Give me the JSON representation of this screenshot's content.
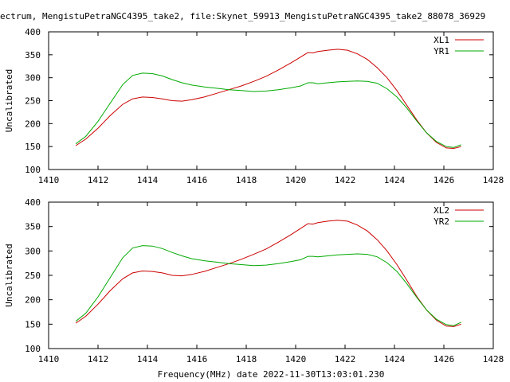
{
  "title": "ectrum, MengistuPetraNGC4395_take2, file:Skynet_59913_MengistuPetraNGC4395_take2_88078_36929",
  "chart_data": [
    {
      "type": "line",
      "ylabel": "Uncalibrated",
      "xlabel": "",
      "xlim": [
        1410,
        1428
      ],
      "ylim": [
        100,
        400
      ],
      "xticks": [
        "1410",
        "1412",
        "1414",
        "1416",
        "1418",
        "1420",
        "1422",
        "1424",
        "1426",
        "1428"
      ],
      "yticks": [
        "100",
        "150",
        "200",
        "250",
        "300",
        "350",
        "400"
      ],
      "grid": false,
      "legend_position": "top-right",
      "series": [
        {
          "name": "XL1",
          "color": "#cc0000",
          "points": [
            [
              1411.1,
              152
            ],
            [
              1411.5,
              166
            ],
            [
              1412.0,
              190
            ],
            [
              1412.5,
              218
            ],
            [
              1413.0,
              242
            ],
            [
              1413.4,
              254
            ],
            [
              1413.8,
              258
            ],
            [
              1414.2,
              257
            ],
            [
              1414.6,
              254
            ],
            [
              1415.0,
              250
            ],
            [
              1415.4,
              249
            ],
            [
              1415.8,
              252
            ],
            [
              1416.3,
              258
            ],
            [
              1416.8,
              266
            ],
            [
              1417.3,
              274
            ],
            [
              1417.8,
              282
            ],
            [
              1418.3,
              292
            ],
            [
              1418.8,
              303
            ],
            [
              1419.3,
              317
            ],
            [
              1419.8,
              332
            ],
            [
              1420.2,
              345
            ],
            [
              1420.5,
              355
            ],
            [
              1420.7,
              354
            ],
            [
              1420.9,
              357
            ],
            [
              1421.3,
              360
            ],
            [
              1421.7,
              362
            ],
            [
              1422.1,
              360
            ],
            [
              1422.5,
              352
            ],
            [
              1422.9,
              340
            ],
            [
              1423.3,
              322
            ],
            [
              1423.7,
              300
            ],
            [
              1424.1,
              272
            ],
            [
              1424.5,
              240
            ],
            [
              1424.9,
              208
            ],
            [
              1425.3,
              180
            ],
            [
              1425.7,
              159
            ],
            [
              1426.1,
              147
            ],
            [
              1426.4,
              146
            ],
            [
              1426.7,
              150
            ]
          ]
        },
        {
          "name": "YR1",
          "color": "#00aa00",
          "points": [
            [
              1411.1,
              156
            ],
            [
              1411.5,
              172
            ],
            [
              1412.0,
              205
            ],
            [
              1412.5,
              245
            ],
            [
              1413.0,
              285
            ],
            [
              1413.4,
              305
            ],
            [
              1413.8,
              310
            ],
            [
              1414.2,
              309
            ],
            [
              1414.6,
              304
            ],
            [
              1415.0,
              296
            ],
            [
              1415.4,
              289
            ],
            [
              1415.8,
              284
            ],
            [
              1416.3,
              280
            ],
            [
              1416.8,
              277
            ],
            [
              1417.3,
              274
            ],
            [
              1417.8,
              272
            ],
            [
              1418.3,
              270
            ],
            [
              1418.8,
              271
            ],
            [
              1419.3,
              274
            ],
            [
              1419.8,
              278
            ],
            [
              1420.2,
              282
            ],
            [
              1420.5,
              289
            ],
            [
              1420.7,
              289
            ],
            [
              1420.9,
              287
            ],
            [
              1421.3,
              289
            ],
            [
              1421.7,
              291
            ],
            [
              1422.1,
              292
            ],
            [
              1422.5,
              293
            ],
            [
              1422.9,
              292
            ],
            [
              1423.3,
              288
            ],
            [
              1423.7,
              276
            ],
            [
              1424.1,
              258
            ],
            [
              1424.5,
              234
            ],
            [
              1424.9,
              206
            ],
            [
              1425.3,
              180
            ],
            [
              1425.7,
              161
            ],
            [
              1426.1,
              150
            ],
            [
              1426.4,
              148
            ],
            [
              1426.7,
              154
            ]
          ]
        }
      ]
    },
    {
      "type": "line",
      "ylabel": "Uncalibrated",
      "xlabel": "Frequency(MHz) date 2022-11-30T13:03:01.230",
      "xlim": [
        1410,
        1428
      ],
      "ylim": [
        100,
        400
      ],
      "xticks": [
        "1410",
        "1412",
        "1414",
        "1416",
        "1418",
        "1420",
        "1422",
        "1424",
        "1426",
        "1428"
      ],
      "yticks": [
        "100",
        "150",
        "200",
        "250",
        "300",
        "350",
        "400"
      ],
      "grid": false,
      "legend_position": "top-right",
      "series": [
        {
          "name": "XL2",
          "color": "#cc0000",
          "points": [
            [
              1411.1,
              152
            ],
            [
              1411.5,
              166
            ],
            [
              1412.0,
              191
            ],
            [
              1412.5,
              219
            ],
            [
              1413.0,
              243
            ],
            [
              1413.4,
              255
            ],
            [
              1413.8,
              259
            ],
            [
              1414.2,
              258
            ],
            [
              1414.6,
              255
            ],
            [
              1415.0,
              250
            ],
            [
              1415.4,
              249
            ],
            [
              1415.8,
              252
            ],
            [
              1416.3,
              258
            ],
            [
              1416.8,
              266
            ],
            [
              1417.3,
              274
            ],
            [
              1417.8,
              283
            ],
            [
              1418.3,
              293
            ],
            [
              1418.8,
              304
            ],
            [
              1419.3,
              318
            ],
            [
              1419.8,
              333
            ],
            [
              1420.2,
              346
            ],
            [
              1420.5,
              356
            ],
            [
              1420.7,
              355
            ],
            [
              1420.9,
              358
            ],
            [
              1421.3,
              361
            ],
            [
              1421.7,
              363
            ],
            [
              1422.1,
              361
            ],
            [
              1422.5,
              353
            ],
            [
              1422.9,
              341
            ],
            [
              1423.3,
              323
            ],
            [
              1423.7,
              300
            ],
            [
              1424.1,
              272
            ],
            [
              1424.5,
              240
            ],
            [
              1424.9,
              207
            ],
            [
              1425.3,
              179
            ],
            [
              1425.7,
              158
            ],
            [
              1426.1,
              146
            ],
            [
              1426.4,
              145
            ],
            [
              1426.7,
              150
            ]
          ]
        },
        {
          "name": "YR2",
          "color": "#00aa00",
          "points": [
            [
              1411.1,
              156
            ],
            [
              1411.5,
              172
            ],
            [
              1412.0,
              206
            ],
            [
              1412.5,
              246
            ],
            [
              1413.0,
              286
            ],
            [
              1413.4,
              306
            ],
            [
              1413.8,
              311
            ],
            [
              1414.2,
              310
            ],
            [
              1414.6,
              305
            ],
            [
              1415.0,
              297
            ],
            [
              1415.4,
              290
            ],
            [
              1415.8,
              284
            ],
            [
              1416.3,
              280
            ],
            [
              1416.8,
              277
            ],
            [
              1417.3,
              274
            ],
            [
              1417.8,
              272
            ],
            [
              1418.3,
              270
            ],
            [
              1418.8,
              271
            ],
            [
              1419.3,
              274
            ],
            [
              1419.8,
              278
            ],
            [
              1420.2,
              282
            ],
            [
              1420.5,
              289
            ],
            [
              1420.7,
              289
            ],
            [
              1420.9,
              288
            ],
            [
              1421.3,
              290
            ],
            [
              1421.7,
              292
            ],
            [
              1422.1,
              293
            ],
            [
              1422.5,
              294
            ],
            [
              1422.9,
              293
            ],
            [
              1423.3,
              288
            ],
            [
              1423.7,
              276
            ],
            [
              1424.1,
              258
            ],
            [
              1424.5,
              233
            ],
            [
              1424.9,
              205
            ],
            [
              1425.3,
              179
            ],
            [
              1425.7,
              160
            ],
            [
              1426.1,
              149
            ],
            [
              1426.4,
              147
            ],
            [
              1426.7,
              154
            ]
          ]
        }
      ]
    }
  ]
}
